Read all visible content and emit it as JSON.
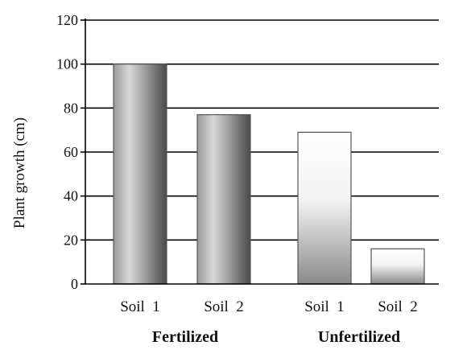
{
  "chart_data": {
    "type": "bar",
    "title": "",
    "ylabel": "Plant growth (cm)",
    "xlabel": "",
    "ylim": [
      0,
      120
    ],
    "yticks": [
      0,
      20,
      40,
      60,
      80,
      100,
      120
    ],
    "grid": true,
    "groups": [
      {
        "label": "Fertilized",
        "categories": [
          "Soil  1",
          "Soil  2"
        ],
        "values": [
          100,
          77
        ]
      },
      {
        "label": "Unfertilized",
        "categories": [
          "Soil  1",
          "Soil  2"
        ],
        "values": [
          69,
          16
        ]
      }
    ]
  }
}
